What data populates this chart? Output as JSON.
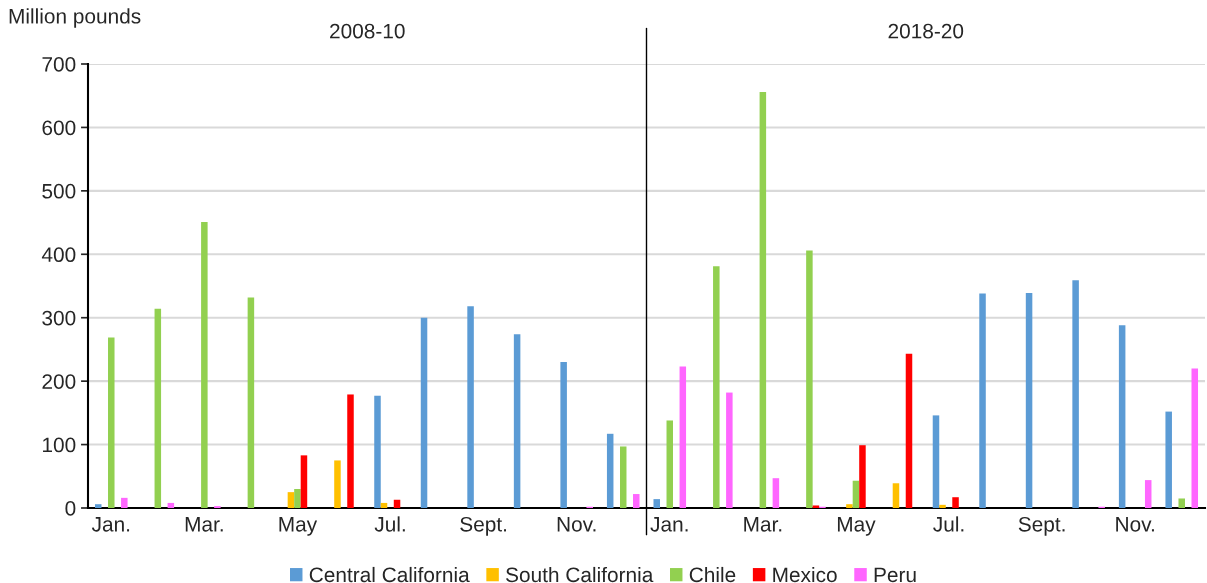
{
  "chart_data": {
    "type": "bar",
    "ylabel": "Million pounds",
    "categories": [
      "Jan.",
      null,
      "Mar.",
      null,
      "May",
      null,
      "Jul.",
      null,
      "Sept.",
      null,
      "Nov.",
      null,
      "Jan.",
      null,
      "Mar.",
      null,
      "May",
      null,
      "Jul.",
      null,
      "Sept.",
      null,
      "Nov.",
      null
    ],
    "series": [
      {
        "name": "Central California",
        "color": "#5b9bd5",
        "values": [
          6,
          null,
          null,
          null,
          null,
          null,
          177,
          300,
          318,
          274,
          230,
          117,
          14,
          null,
          null,
          null,
          null,
          null,
          146,
          338,
          339,
          359,
          288,
          152
        ]
      },
      {
        "name": "South California",
        "color": "#ffc000",
        "values": [
          null,
          null,
          null,
          null,
          25,
          75,
          8,
          null,
          null,
          null,
          null,
          null,
          null,
          null,
          null,
          null,
          6,
          39,
          5,
          null,
          null,
          null,
          null,
          null
        ]
      },
      {
        "name": "Chile",
        "color": "#92d050",
        "values": [
          269,
          314,
          451,
          332,
          30,
          null,
          null,
          null,
          null,
          null,
          null,
          97,
          138,
          381,
          656,
          406,
          43,
          null,
          null,
          null,
          null,
          null,
          null,
          15
        ]
      },
      {
        "name": "Mexico",
        "color": "#ff0000",
        "values": [
          null,
          null,
          null,
          null,
          83,
          179,
          13,
          null,
          null,
          null,
          null,
          null,
          null,
          null,
          null,
          4,
          99,
          243,
          17,
          null,
          null,
          null,
          null,
          null
        ]
      },
      {
        "name": "Peru",
        "color": "#ff66ff",
        "values": [
          16,
          8,
          3,
          null,
          null,
          null,
          null,
          null,
          null,
          null,
          2,
          22,
          223,
          182,
          47,
          2,
          null,
          null,
          null,
          null,
          null,
          2,
          44,
          220
        ]
      }
    ],
    "annotations": [
      "2008-10",
      "2018-20"
    ],
    "ylim": [
      0,
      700
    ],
    "yticks": [
      0,
      100,
      200,
      300,
      400,
      500,
      600,
      700
    ],
    "grid": "y",
    "legend": "bottom"
  }
}
